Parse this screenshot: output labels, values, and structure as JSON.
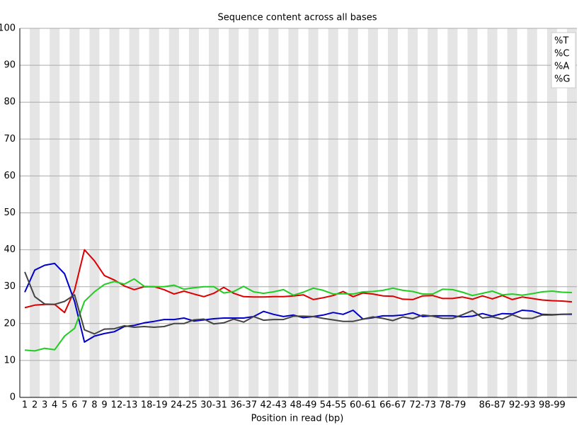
{
  "chart_data": {
    "type": "line",
    "title": "Sequence content across all bases",
    "x_label": "Position in read (bp)",
    "categories": [
      "1",
      "2",
      "3",
      "4",
      "5",
      "6",
      "7",
      "8",
      "9",
      null,
      "12-13",
      null,
      null,
      "18-19",
      null,
      null,
      "24-25",
      null,
      null,
      "30-31",
      null,
      null,
      "36-37",
      null,
      null,
      "42-43",
      null,
      null,
      "48-49",
      null,
      null,
      "54-55",
      null,
      null,
      "60-61",
      null,
      null,
      "66-67",
      null,
      null,
      "72-73",
      null,
      null,
      "78-79",
      null,
      null,
      null,
      "86-87",
      null,
      null,
      "92-93",
      null,
      null,
      "98-99",
      null,
      null
    ],
    "series": [
      {
        "name": "%T",
        "color": "#dd0000",
        "values": [
          24.3,
          25,
          25.2,
          25.2,
          23,
          29,
          40,
          37,
          33,
          31.8,
          30.2,
          29.2,
          30,
          30,
          29.2,
          28,
          28.8,
          28,
          27.3,
          28.2,
          29.8,
          28.2,
          27.3,
          27.2,
          27.2,
          27.3,
          27.3,
          27.5,
          27.8,
          26.5,
          27,
          27.6,
          28.7,
          27.3,
          28.3,
          28,
          27.5,
          27.4,
          26.6,
          26.5,
          27.5,
          27.6,
          26.8,
          26.8,
          27.2,
          26.6,
          27.5,
          26.7,
          27.6,
          26.5,
          27.2,
          26.8,
          26.4,
          26.2,
          26.1,
          25.9
        ]
      },
      {
        "name": "%C",
        "color": "#0000cc",
        "values": [
          28.5,
          34.5,
          35.8,
          36.3,
          33.5,
          26,
          15,
          16.6,
          17.3,
          17.8,
          19.2,
          19.5,
          20.2,
          20.6,
          21.1,
          21.1,
          21.5,
          20.7,
          21,
          21.3,
          21.5,
          21.5,
          21.5,
          21.9,
          23.3,
          22.5,
          21.9,
          22.3,
          21.6,
          21.9,
          22.3,
          23,
          22.5,
          23.6,
          21.2,
          21.6,
          22.1,
          22.1,
          22.3,
          22.9,
          21.9,
          22.1,
          22.1,
          22.1,
          21.8,
          22,
          22.7,
          22,
          22.7,
          22.6,
          23.6,
          23.4,
          22.5,
          22.4,
          22.5,
          22.5
        ]
      },
      {
        "name": "%A",
        "color": "#22cc22",
        "values": [
          12.8,
          12.6,
          13.3,
          12.9,
          16.6,
          18.7,
          26,
          28.6,
          30.6,
          31.4,
          30.7,
          32.1,
          30.1,
          30,
          30,
          30.4,
          29.3,
          29.7,
          30,
          30,
          28.3,
          28.7,
          30.1,
          28.6,
          28.2,
          28.6,
          29.2,
          27.7,
          28.5,
          29.6,
          29,
          28,
          28.1,
          28,
          28.6,
          28.7,
          29,
          29.6,
          29,
          28.7,
          28,
          28,
          29.3,
          29.2,
          28.5,
          27.6,
          28.2,
          28.8,
          27.8,
          28,
          27.7,
          28.1,
          28.6,
          28.8,
          28.5,
          28.4
        ]
      },
      {
        "name": "%G",
        "color": "#444444",
        "values": [
          34,
          27.3,
          25.3,
          25.2,
          26,
          27.8,
          18.3,
          17.2,
          18.5,
          18.6,
          19.4,
          19,
          19.2,
          19,
          19.2,
          20,
          20,
          21,
          21.2,
          19.9,
          20.2,
          21.2,
          20.4,
          21.9,
          20.9,
          21.1,
          21.1,
          22,
          22,
          21.9,
          21.4,
          21,
          20.6,
          20.6,
          21.2,
          21.8,
          21.4,
          20.8,
          21.8,
          21.3,
          22.3,
          22,
          21.4,
          21.4,
          22.4,
          23.5,
          21.5,
          21.8,
          21.2,
          22.4,
          21.4,
          21.4,
          22.3,
          22.3,
          22.5,
          22.6
        ]
      }
    ],
    "ylim": [
      0,
      100
    ],
    "yticks": [
      0,
      10,
      20,
      30,
      40,
      50,
      60,
      70,
      80,
      90,
      100
    ],
    "grid": true,
    "legend": "upper right"
  }
}
